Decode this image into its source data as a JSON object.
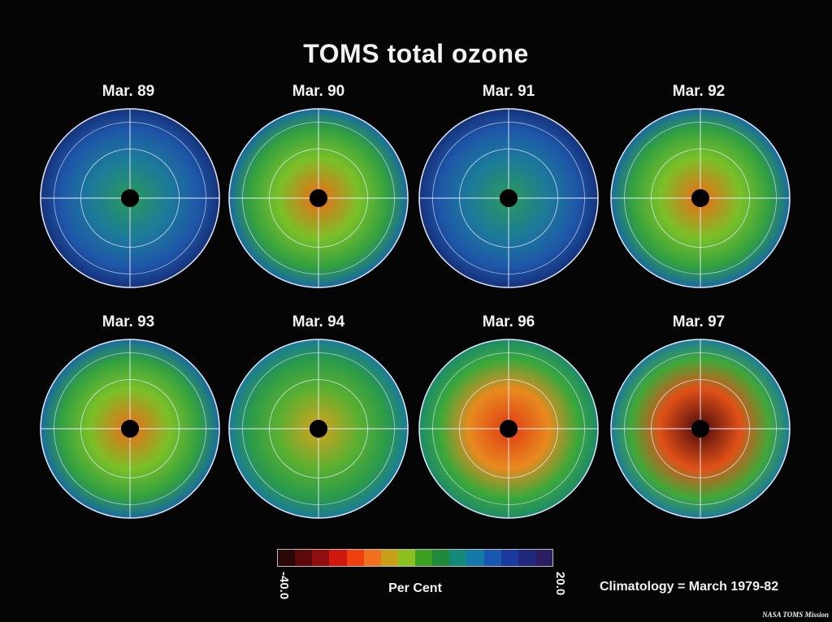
{
  "title": "TOMS total ozone",
  "maps": [
    {
      "label": "Mar. 89",
      "anomaly": "low",
      "holes": [
        [
          0.0,
          0.0
        ],
        [
          0.05,
          -0.15
        ]
      ]
    },
    {
      "label": "Mar. 90",
      "anomaly": "mid-high"
    },
    {
      "label": "Mar. 91",
      "anomaly": "low"
    },
    {
      "label": "Mar. 92",
      "anomaly": "mid-high"
    },
    {
      "label": "Mar. 93",
      "anomaly": "mid-high"
    },
    {
      "label": "Mar. 94",
      "anomaly": "mid"
    },
    {
      "label": "Mar. 96",
      "anomaly": "high"
    },
    {
      "label": "Mar. 97",
      "anomaly": "very-high"
    }
  ],
  "colorbar": {
    "min_label": "-40.0",
    "max_label": "20.0",
    "label": "Per Cent",
    "colors": [
      "#2a0808",
      "#5a0a0a",
      "#900e0e",
      "#d0180e",
      "#f04010",
      "#f07020",
      "#c8a018",
      "#8cc020",
      "#3ca020",
      "#1e8a3a",
      "#158a7a",
      "#167aa8",
      "#1858b0",
      "#1a3aa0",
      "#20287e",
      "#2a1e60"
    ]
  },
  "climatology": "Climatology = March 1979-82",
  "credit": "NASA TOMS Mission"
}
